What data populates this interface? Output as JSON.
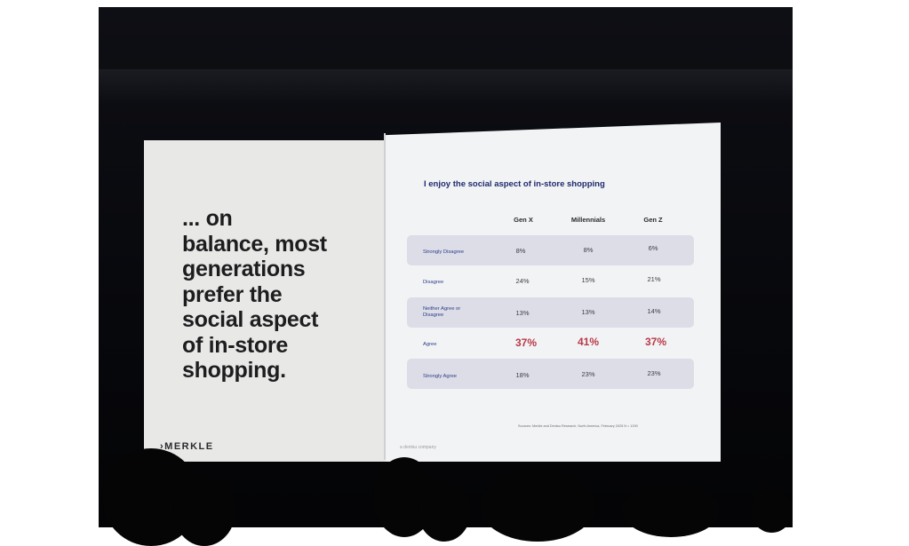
{
  "slide": {
    "headline_lines": [
      "... on",
      "balance, most",
      "generations",
      "prefer the",
      "social aspect",
      "of in-store",
      "shopping."
    ],
    "logo": "›MERKLE",
    "tagline": "a dentsu company",
    "table": {
      "title": "I enjoy the social aspect of in-store shopping",
      "columns": [
        "Gen X",
        "Millennials",
        "Gen Z"
      ],
      "rows": [
        {
          "label": "Strongly Disagree",
          "values": [
            "8%",
            "8%",
            "6%"
          ]
        },
        {
          "label": "Disagree",
          "values": [
            "24%",
            "15%",
            "21%"
          ]
        },
        {
          "label": "Neither Agree or Disagree",
          "values": [
            "13%",
            "13%",
            "14%"
          ]
        },
        {
          "label": "Agree",
          "values": [
            "37%",
            "41%",
            "37%"
          ]
        },
        {
          "label": "Strongly Agree",
          "values": [
            "18%",
            "23%",
            "23%"
          ]
        }
      ],
      "source": "Sources: Merkle and Dentsu Research, North America, February 2025 N = 1290"
    }
  },
  "colors": {
    "accent": "#b83a4a",
    "title": "#1f2a6e",
    "row_shade": "#dcdde6"
  }
}
